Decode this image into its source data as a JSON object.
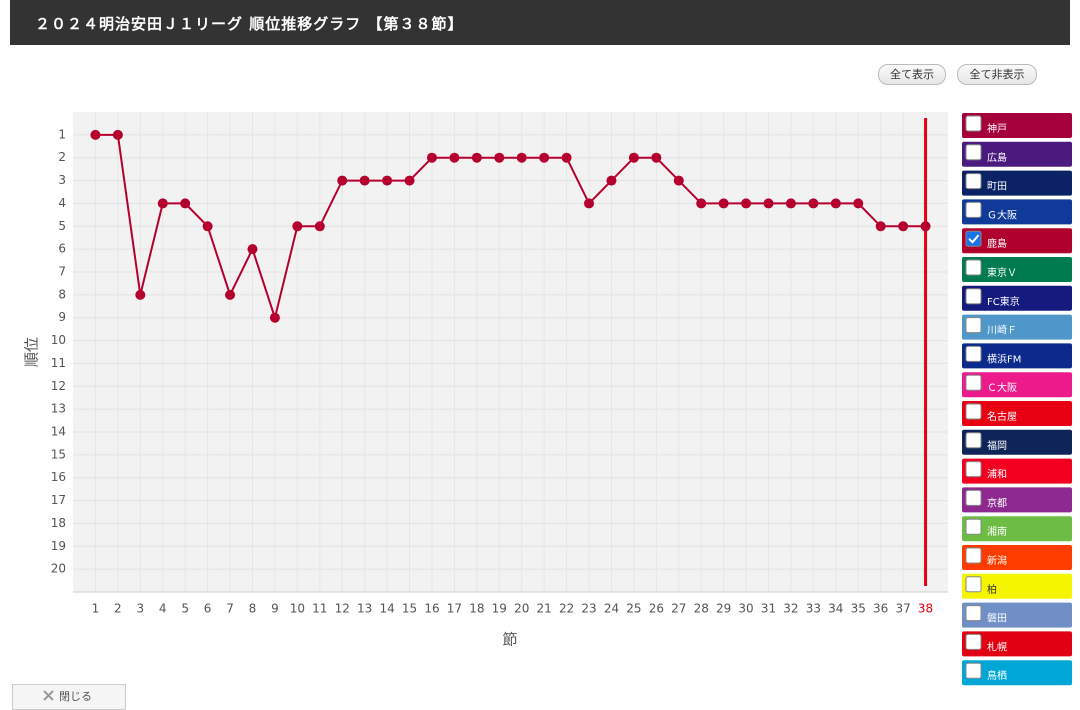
{
  "header": {
    "title": "２０２４明治安田Ｊ１リーグ 順位推移グラフ 【第３８節】"
  },
  "buttons": {
    "show_all": "全て表示",
    "hide_all": "全て非表示"
  },
  "close": "閉じる",
  "chart_data": {
    "type": "line",
    "x_label": "節",
    "y_label": "順位",
    "categories": [
      "1",
      "2",
      "3",
      "4",
      "5",
      "6",
      "7",
      "8",
      "9",
      "10",
      "11",
      "12",
      "13",
      "14",
      "15",
      "16",
      "17",
      "18",
      "19",
      "20",
      "21",
      "22",
      "23",
      "24",
      "25",
      "26",
      "27",
      "28",
      "29",
      "30",
      "31",
      "32",
      "33",
      "34",
      "35",
      "36",
      "37",
      "38"
    ],
    "values": [
      1,
      1,
      8,
      4,
      4,
      5,
      8,
      6,
      9,
      5,
      5,
      3,
      3,
      3,
      3,
      2,
      2,
      2,
      2,
      2,
      2,
      2,
      4,
      3,
      2,
      2,
      3,
      4,
      4,
      4,
      4,
      4,
      4,
      4,
      4,
      5,
      5,
      5
    ],
    "color": "#b5002d",
    "ylim": [
      21,
      0
    ],
    "yticks": [
      1,
      2,
      3,
      4,
      5,
      6,
      7,
      8,
      9,
      10,
      11,
      12,
      13,
      14,
      15,
      16,
      17,
      18,
      19,
      20
    ],
    "grid": true
  },
  "teams": [
    {
      "name": "神戸",
      "color": "#a5003a",
      "checked": false
    },
    {
      "name": "広島",
      "color": "#4b1a7f",
      "checked": false
    },
    {
      "name": "町田",
      "color": "#0b2265",
      "checked": false
    },
    {
      "name": "Ｇ大阪",
      "color": "#0f3a9a",
      "checked": false
    },
    {
      "name": "鹿島",
      "color": "#b0002c",
      "checked": true
    },
    {
      "name": "東京Ｖ",
      "color": "#007a4f",
      "checked": false
    },
    {
      "name": "FC東京",
      "color": "#141a7e",
      "checked": false
    },
    {
      "name": "川崎Ｆ",
      "color": "#4f97c9",
      "checked": false
    },
    {
      "name": "横浜FM",
      "color": "#0b2a8c",
      "checked": false
    },
    {
      "name": "Ｃ大阪",
      "color": "#ec1a8b",
      "checked": false
    },
    {
      "name": "名古屋",
      "color": "#e60012",
      "checked": false
    },
    {
      "name": "福岡",
      "color": "#0f2559",
      "checked": false
    },
    {
      "name": "浦和",
      "color": "#f2001f",
      "checked": false
    },
    {
      "name": "京都",
      "color": "#8e2a8f",
      "checked": false
    },
    {
      "name": "湘南",
      "color": "#6dbd45",
      "checked": false
    },
    {
      "name": "新潟",
      "color": "#ff3c00",
      "checked": false
    },
    {
      "name": "柏",
      "color": "#f5f500",
      "checked": false
    },
    {
      "name": "磐田",
      "color": "#6f8fc6",
      "checked": false
    },
    {
      "name": "札幌",
      "color": "#e10011",
      "checked": false
    },
    {
      "name": "鳥栖",
      "color": "#00a6d6",
      "checked": false
    }
  ]
}
